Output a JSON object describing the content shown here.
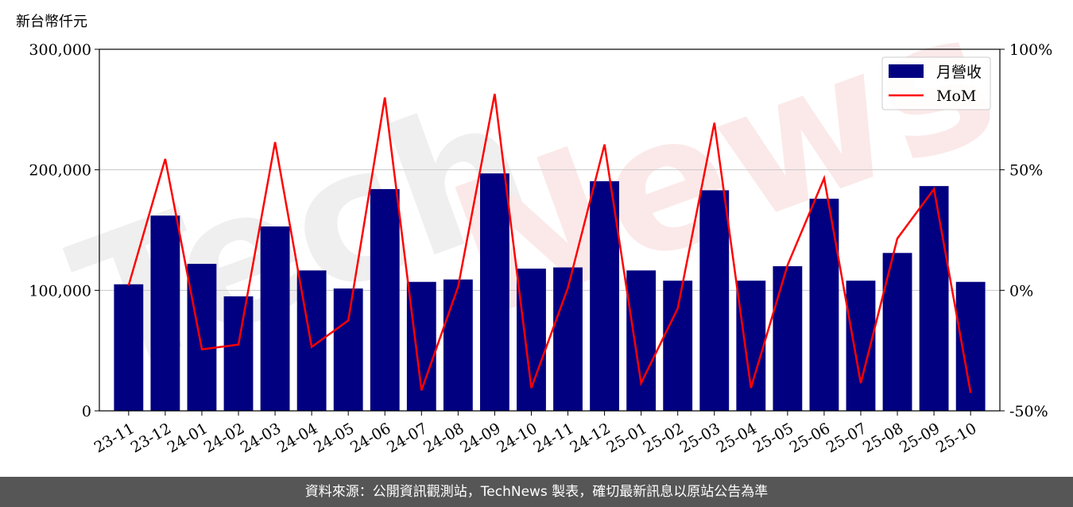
{
  "chart_data": {
    "type": "bar",
    "y_unit_label": "新台幣仟元",
    "categories": [
      "23-11",
      "23-12",
      "24-01",
      "24-02",
      "24-03",
      "24-04",
      "24-05",
      "24-06",
      "24-07",
      "24-08",
      "24-09",
      "24-10",
      "24-11",
      "24-12",
      "25-01",
      "25-02",
      "25-03",
      "25-04",
      "25-05",
      "25-06",
      "25-07",
      "25-08",
      "25-09",
      "25-10"
    ],
    "series": [
      {
        "name": "月營收",
        "type": "bar",
        "axis": "left",
        "color": "#000080",
        "values": [
          105000,
          162000,
          122000,
          95000,
          153000,
          116500,
          101500,
          184000,
          107000,
          109000,
          197000,
          118000,
          119000,
          190500,
          116500,
          108000,
          183000,
          108000,
          120000,
          176000,
          108000,
          131000,
          186500,
          107000
        ]
      },
      {
        "name": "MoM",
        "type": "line",
        "axis": "right",
        "color": "#ff0000",
        "values": [
          2,
          54.5,
          -24.5,
          -22.5,
          61.5,
          -23.5,
          -12.5,
          80,
          -41.5,
          1.5,
          81.5,
          -40.5,
          1,
          60.5,
          -38.5,
          -7.5,
          69.5,
          -40.5,
          10.5,
          46.5,
          -38.5,
          21.5,
          42,
          -42.5
        ]
      }
    ],
    "y_left": {
      "ylim": [
        0,
        300000
      ],
      "ticks": [
        0,
        100000,
        200000,
        300000
      ],
      "tick_labels": [
        "0",
        "100,000",
        "200,000",
        "300,000"
      ]
    },
    "y_right": {
      "ylim": [
        -50,
        100
      ],
      "ticks": [
        -50,
        0,
        50,
        100
      ],
      "tick_labels": [
        "-50%",
        "0%",
        "50%",
        "100%"
      ]
    },
    "grid": "horizontal",
    "legend": "top-right"
  },
  "watermark": "TechNews",
  "footer": {
    "text": "資料來源：公開資訊觀測站，TechNews 製表，確切最新訊息以原站公告為準"
  }
}
